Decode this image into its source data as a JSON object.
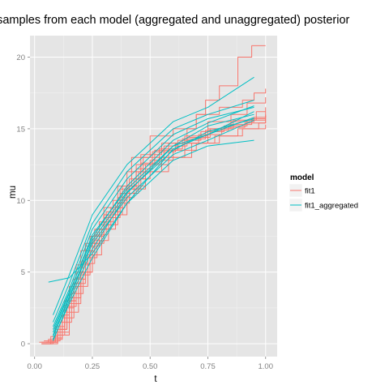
{
  "chart_data": {
    "type": "line",
    "title": "m samples from each model (aggregated and unaggregated) posterior",
    "xlabel": "t",
    "ylabel": "mu",
    "xlim": [
      -0.02,
      1.05
    ],
    "ylim": [
      -0.9,
      21.5
    ],
    "x_ticks": [
      "0.00",
      "0.25",
      "0.50",
      "0.75",
      "1.00"
    ],
    "x_tick_values": [
      0,
      0.25,
      0.5,
      0.75,
      1.0
    ],
    "y_ticks": [
      "0",
      "5",
      "10",
      "15",
      "20"
    ],
    "y_tick_values": [
      0,
      5,
      10,
      15,
      20
    ],
    "grid": true,
    "legend_position": "right",
    "legend": {
      "title": "model",
      "entries": [
        {
          "label": "fit1",
          "color": "#F8766D"
        },
        {
          "label": "fit1_aggregated",
          "color": "#00BFC4"
        }
      ]
    },
    "series": [
      {
        "name": "fit1",
        "color": "#F8766D",
        "step": true,
        "paths": [
          [
            [
              0.03,
              0.0
            ],
            [
              0.08,
              0.3
            ],
            [
              0.12,
              2.0
            ],
            [
              0.15,
              4.0
            ],
            [
              0.2,
              6.5
            ],
            [
              0.26,
              8.0
            ],
            [
              0.3,
              9.0
            ],
            [
              0.36,
              11.0
            ],
            [
              0.42,
              13.0
            ],
            [
              0.5,
              14.5
            ],
            [
              0.6,
              15.0
            ],
            [
              0.7,
              16.0
            ],
            [
              0.8,
              16.5
            ],
            [
              0.9,
              17.0
            ],
            [
              0.95,
              17.5
            ],
            [
              1.0,
              17.8
            ]
          ],
          [
            [
              0.03,
              0.1
            ],
            [
              0.09,
              0.6
            ],
            [
              0.13,
              2.5
            ],
            [
              0.17,
              4.5
            ],
            [
              0.22,
              7.0
            ],
            [
              0.28,
              8.5
            ],
            [
              0.34,
              10.0
            ],
            [
              0.4,
              12.0
            ],
            [
              0.46,
              13.2
            ],
            [
              0.55,
              14.0
            ],
            [
              0.65,
              14.5
            ],
            [
              0.75,
              15.0
            ],
            [
              0.85,
              15.5
            ],
            [
              0.95,
              15.8
            ],
            [
              1.0,
              16.0
            ]
          ],
          [
            [
              0.04,
              0.0
            ],
            [
              0.1,
              1.0
            ],
            [
              0.14,
              3.0
            ],
            [
              0.18,
              5.5
            ],
            [
              0.24,
              7.5
            ],
            [
              0.3,
              9.5
            ],
            [
              0.38,
              11.0
            ],
            [
              0.44,
              12.5
            ],
            [
              0.52,
              13.5
            ],
            [
              0.62,
              14.2
            ],
            [
              0.72,
              14.8
            ],
            [
              0.82,
              15.2
            ],
            [
              0.92,
              15.6
            ],
            [
              1.0,
              16.2
            ]
          ],
          [
            [
              0.03,
              0.0
            ],
            [
              0.07,
              0.2
            ],
            [
              0.11,
              1.5
            ],
            [
              0.16,
              3.5
            ],
            [
              0.21,
              6.0
            ],
            [
              0.27,
              8.0
            ],
            [
              0.33,
              9.5
            ],
            [
              0.39,
              10.8
            ],
            [
              0.48,
              12.0
            ],
            [
              0.58,
              13.0
            ],
            [
              0.68,
              14.0
            ],
            [
              0.78,
              14.5
            ],
            [
              0.88,
              15.0
            ],
            [
              0.97,
              15.4
            ],
            [
              1.0,
              15.6
            ]
          ],
          [
            [
              0.05,
              0.1
            ],
            [
              0.1,
              0.8
            ],
            [
              0.15,
              2.8
            ],
            [
              0.2,
              5.0
            ],
            [
              0.25,
              7.2
            ],
            [
              0.32,
              9.0
            ],
            [
              0.38,
              10.5
            ],
            [
              0.45,
              12.0
            ],
            [
              0.55,
              13.0
            ],
            [
              0.65,
              14.0
            ],
            [
              0.75,
              15.5
            ],
            [
              0.85,
              16.0
            ],
            [
              0.92,
              16.8
            ],
            [
              1.0,
              17.2
            ]
          ],
          [
            [
              0.03,
              0.0
            ],
            [
              0.08,
              0.4
            ],
            [
              0.12,
              1.8
            ],
            [
              0.17,
              4.2
            ],
            [
              0.22,
              6.8
            ],
            [
              0.28,
              8.3
            ],
            [
              0.36,
              10.2
            ],
            [
              0.43,
              11.5
            ],
            [
              0.5,
              12.8
            ],
            [
              0.6,
              13.5
            ],
            [
              0.7,
              14.0
            ],
            [
              0.8,
              14.5
            ],
            [
              0.9,
              15.0
            ],
            [
              1.0,
              15.3
            ]
          ],
          [
            [
              0.04,
              0.2
            ],
            [
              0.09,
              1.2
            ],
            [
              0.13,
              2.2
            ],
            [
              0.19,
              4.8
            ],
            [
              0.24,
              7.0
            ],
            [
              0.3,
              8.8
            ],
            [
              0.37,
              10.5
            ],
            [
              0.44,
              12.2
            ],
            [
              0.51,
              13.4
            ],
            [
              0.61,
              14.0
            ],
            [
              0.71,
              14.6
            ],
            [
              0.81,
              15.1
            ],
            [
              0.91,
              15.4
            ],
            [
              1.0,
              15.7
            ]
          ],
          [
            [
              0.03,
              0.0
            ],
            [
              0.07,
              0.5
            ],
            [
              0.1,
              1.0
            ],
            [
              0.14,
              2.6
            ],
            [
              0.18,
              4.0
            ],
            [
              0.23,
              6.2
            ],
            [
              0.29,
              8.0
            ],
            [
              0.35,
              9.8
            ],
            [
              0.41,
              11.5
            ],
            [
              0.47,
              13.0
            ],
            [
              0.56,
              13.8
            ],
            [
              0.66,
              14.4
            ],
            [
              0.76,
              15.0
            ],
            [
              0.86,
              15.6
            ],
            [
              0.96,
              16.2
            ],
            [
              1.0,
              16.5
            ]
          ],
          [
            [
              0.06,
              0.1
            ],
            [
              0.1,
              0.6
            ],
            [
              0.15,
              3.2
            ],
            [
              0.2,
              5.6
            ],
            [
              0.26,
              7.6
            ],
            [
              0.31,
              9.2
            ],
            [
              0.37,
              10.8
            ],
            [
              0.46,
              12.6
            ],
            [
              0.54,
              13.6
            ],
            [
              0.64,
              14.3
            ],
            [
              0.74,
              14.9
            ],
            [
              0.84,
              15.3
            ],
            [
              0.94,
              15.7
            ],
            [
              1.0,
              15.9
            ]
          ],
          [
            [
              0.02,
              0.1
            ],
            [
              0.06,
              0.3
            ],
            [
              0.09,
              1.0
            ],
            [
              0.13,
              3.0
            ],
            [
              0.18,
              5.0
            ],
            [
              0.25,
              7.5
            ],
            [
              0.3,
              9.0
            ],
            [
              0.4,
              11.0
            ],
            [
              0.48,
              12.5
            ],
            [
              0.58,
              14.0
            ],
            [
              0.66,
              15.0
            ],
            [
              0.7,
              16.0
            ],
            [
              0.74,
              17.0
            ],
            [
              0.8,
              18.0
            ],
            [
              0.88,
              20.0
            ],
            [
              0.94,
              20.8
            ],
            [
              1.0,
              20.8
            ]
          ]
        ]
      },
      {
        "name": "fit1_aggregated",
        "color": "#00BFC4",
        "step": false,
        "paths": [
          [
            [
              0.06,
              4.3
            ],
            [
              0.15,
              4.6
            ],
            [
              0.25,
              6.3
            ],
            [
              0.4,
              9.8
            ],
            [
              0.6,
              13.6
            ],
            [
              0.75,
              14.6
            ],
            [
              0.95,
              16.2
            ]
          ],
          [
            [
              0.08,
              1.2
            ],
            [
              0.15,
              3.8
            ],
            [
              0.25,
              8.0
            ],
            [
              0.4,
              11.5
            ],
            [
              0.6,
              14.6
            ],
            [
              0.75,
              15.7
            ],
            [
              0.95,
              16.5
            ]
          ],
          [
            [
              0.08,
              0.8
            ],
            [
              0.15,
              3.5
            ],
            [
              0.25,
              7.6
            ],
            [
              0.4,
              10.8
            ],
            [
              0.6,
              13.8
            ],
            [
              0.75,
              15.2
            ],
            [
              0.95,
              16.0
            ]
          ],
          [
            [
              0.08,
              0.2
            ],
            [
              0.15,
              3.0
            ],
            [
              0.25,
              6.6
            ],
            [
              0.4,
              10.5
            ],
            [
              0.6,
              13.8
            ],
            [
              0.75,
              14.6
            ],
            [
              0.95,
              15.8
            ]
          ],
          [
            [
              0.08,
              0.5
            ],
            [
              0.15,
              3.2
            ],
            [
              0.25,
              7.0
            ],
            [
              0.4,
              10.2
            ],
            [
              0.6,
              13.2
            ],
            [
              0.75,
              14.2
            ],
            [
              0.95,
              15.6
            ]
          ],
          [
            [
              0.08,
              1.5
            ],
            [
              0.15,
              4.2
            ],
            [
              0.25,
              8.4
            ],
            [
              0.4,
              12.0
            ],
            [
              0.6,
              15.0
            ],
            [
              0.75,
              16.0
            ],
            [
              0.95,
              17.0
            ]
          ],
          [
            [
              0.08,
              0.3
            ],
            [
              0.15,
              2.8
            ],
            [
              0.25,
              6.0
            ],
            [
              0.4,
              9.8
            ],
            [
              0.6,
              12.8
            ],
            [
              0.75,
              13.8
            ],
            [
              0.95,
              14.2
            ]
          ],
          [
            [
              0.08,
              2.0
            ],
            [
              0.15,
              4.8
            ],
            [
              0.25,
              9.0
            ],
            [
              0.4,
              12.5
            ],
            [
              0.6,
              15.5
            ],
            [
              0.75,
              16.5
            ],
            [
              0.95,
              18.6
            ]
          ],
          [
            [
              0.08,
              1.0
            ],
            [
              0.15,
              3.6
            ],
            [
              0.25,
              7.4
            ],
            [
              0.4,
              11.0
            ],
            [
              0.6,
              14.2
            ],
            [
              0.75,
              15.4
            ],
            [
              0.95,
              16.6
            ]
          ],
          [
            [
              0.08,
              0.6
            ],
            [
              0.15,
              3.3
            ],
            [
              0.25,
              7.2
            ],
            [
              0.4,
              10.6
            ],
            [
              0.6,
              13.5
            ],
            [
              0.75,
              14.8
            ],
            [
              0.95,
              15.7
            ]
          ]
        ]
      }
    ]
  }
}
